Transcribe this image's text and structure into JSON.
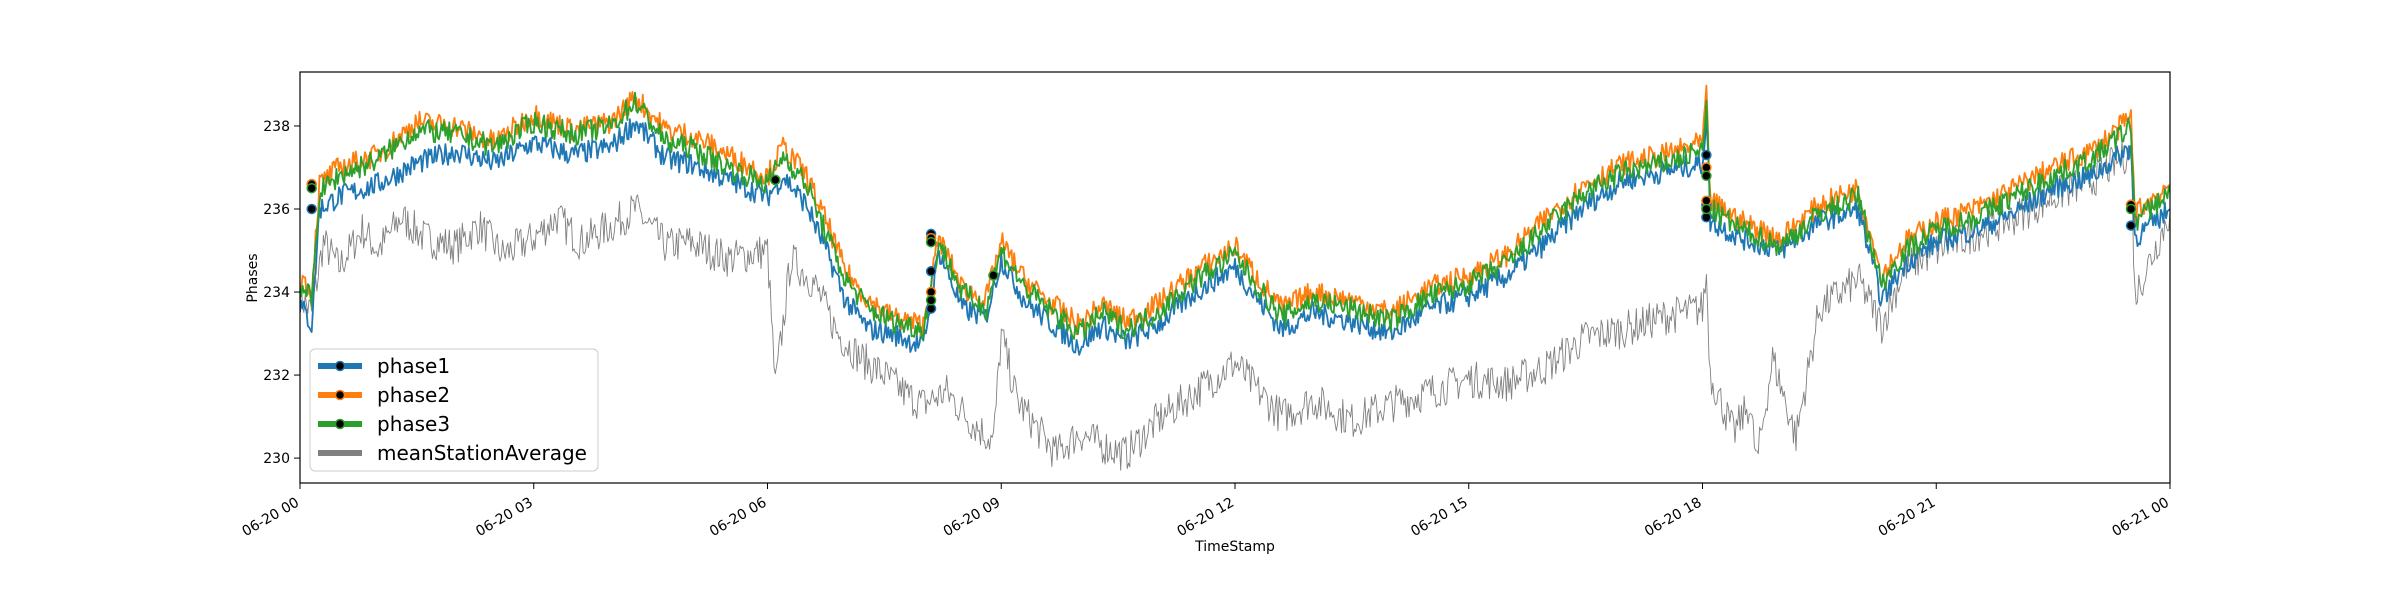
{
  "chart_data": {
    "type": "line",
    "title": "",
    "xlabel": "TimeStamp",
    "ylabel": "Phases",
    "x_ticks": [
      "06-20 00",
      "06-20 03",
      "06-20 06",
      "06-20 09",
      "06-20 12",
      "06-20 15",
      "06-20 18",
      "06-20 21",
      "06-21 00"
    ],
    "x_range_hours": [
      0,
      24
    ],
    "ylim": [
      229.4,
      239.3
    ],
    "y_ticks": [
      230,
      232,
      234,
      236,
      238
    ],
    "legend_position": "bottom-left",
    "grid": false,
    "series": [
      {
        "name": "phase1",
        "color": "#1f77b4",
        "marker_color": "#000000",
        "points": [
          [
            0,
            233.7
          ],
          [
            0.15,
            233.2
          ],
          [
            0.25,
            236.0
          ],
          [
            0.5,
            236.3
          ],
          [
            1,
            236.6
          ],
          [
            1.5,
            237.1
          ],
          [
            2,
            237.4
          ],
          [
            2.5,
            237.1
          ],
          [
            3,
            237.6
          ],
          [
            3.5,
            237.3
          ],
          [
            4,
            237.5
          ],
          [
            4.3,
            238.1
          ],
          [
            4.7,
            237.2
          ],
          [
            5,
            237.1
          ],
          [
            5.5,
            236.7
          ],
          [
            6,
            236.3
          ],
          [
            6.2,
            236.8
          ],
          [
            6.5,
            236.1
          ],
          [
            6.8,
            234.8
          ],
          [
            7,
            233.8
          ],
          [
            7.3,
            233.1
          ],
          [
            7.6,
            233.0
          ],
          [
            8,
            232.7
          ],
          [
            8.2,
            235.0
          ],
          [
            8.5,
            233.6
          ],
          [
            8.8,
            233.4
          ],
          [
            9,
            234.8
          ],
          [
            9.3,
            233.8
          ],
          [
            9.6,
            233.3
          ],
          [
            10,
            232.7
          ],
          [
            10.3,
            233.2
          ],
          [
            10.6,
            232.8
          ],
          [
            11,
            233.2
          ],
          [
            11.5,
            234.0
          ],
          [
            12,
            234.6
          ],
          [
            12.3,
            233.8
          ],
          [
            12.6,
            233.1
          ],
          [
            13,
            233.5
          ],
          [
            13.5,
            233.3
          ],
          [
            14,
            233.0
          ],
          [
            14.5,
            233.6
          ],
          [
            15,
            233.9
          ],
          [
            15.5,
            234.4
          ],
          [
            16,
            235.2
          ],
          [
            16.5,
            236.1
          ],
          [
            17,
            236.7
          ],
          [
            17.5,
            236.9
          ],
          [
            18,
            237.1
          ],
          [
            18.05,
            238.3
          ],
          [
            18.1,
            235.7
          ],
          [
            18.5,
            235.3
          ],
          [
            19,
            235.0
          ],
          [
            19.5,
            235.7
          ],
          [
            20,
            236.0
          ],
          [
            20.3,
            233.8
          ],
          [
            20.6,
            234.7
          ],
          [
            21,
            235.2
          ],
          [
            21.5,
            235.5
          ],
          [
            22,
            235.9
          ],
          [
            22.5,
            236.5
          ],
          [
            23,
            236.8
          ],
          [
            23.5,
            237.5
          ],
          [
            23.55,
            235.3
          ],
          [
            24,
            236.0
          ]
        ],
        "markers": [
          [
            0.15,
            236.0
          ],
          [
            0.15,
            236.6
          ],
          [
            6.1,
            236.7
          ],
          [
            8.1,
            234.5
          ],
          [
            8.1,
            233.6
          ],
          [
            8.1,
            235.4
          ],
          [
            8.9,
            234.4
          ],
          [
            18.05,
            236.1
          ],
          [
            18.05,
            235.8
          ],
          [
            18.05,
            237.3
          ],
          [
            23.5,
            235.6
          ],
          [
            23.5,
            236.1
          ]
        ]
      },
      {
        "name": "phase2",
        "color": "#ff7f0e",
        "marker_color": "#000000",
        "points": [
          [
            0,
            234.4
          ],
          [
            0.15,
            234.0
          ],
          [
            0.25,
            236.6
          ],
          [
            0.5,
            237.0
          ],
          [
            1,
            237.3
          ],
          [
            1.5,
            238.1
          ],
          [
            2,
            238.0
          ],
          [
            2.5,
            237.6
          ],
          [
            3,
            238.3
          ],
          [
            3.5,
            237.9
          ],
          [
            4,
            238.1
          ],
          [
            4.3,
            238.7
          ],
          [
            4.7,
            237.9
          ],
          [
            5,
            237.8
          ],
          [
            5.5,
            237.3
          ],
          [
            6,
            236.8
          ],
          [
            6.2,
            237.5
          ],
          [
            6.5,
            236.8
          ],
          [
            6.8,
            235.5
          ],
          [
            7,
            234.5
          ],
          [
            7.3,
            233.8
          ],
          [
            7.6,
            233.4
          ],
          [
            8,
            233.2
          ],
          [
            8.2,
            235.3
          ],
          [
            8.5,
            234.1
          ],
          [
            8.8,
            233.8
          ],
          [
            9,
            235.2
          ],
          [
            9.3,
            234.3
          ],
          [
            9.6,
            233.8
          ],
          [
            10,
            233.2
          ],
          [
            10.3,
            233.7
          ],
          [
            10.6,
            233.3
          ],
          [
            11,
            233.7
          ],
          [
            11.5,
            234.5
          ],
          [
            12,
            235.1
          ],
          [
            12.3,
            234.3
          ],
          [
            12.6,
            233.6
          ],
          [
            13,
            234.0
          ],
          [
            13.5,
            233.8
          ],
          [
            14,
            233.5
          ],
          [
            14.5,
            234.1
          ],
          [
            15,
            234.4
          ],
          [
            15.5,
            234.9
          ],
          [
            16,
            235.8
          ],
          [
            16.5,
            236.6
          ],
          [
            17,
            237.1
          ],
          [
            17.5,
            237.3
          ],
          [
            18,
            237.6
          ],
          [
            18.05,
            238.7
          ],
          [
            18.1,
            236.2
          ],
          [
            18.5,
            235.7
          ],
          [
            19,
            235.3
          ],
          [
            19.5,
            236.1
          ],
          [
            20,
            236.5
          ],
          [
            20.3,
            234.4
          ],
          [
            20.6,
            235.2
          ],
          [
            21,
            235.7
          ],
          [
            21.5,
            236.0
          ],
          [
            22,
            236.5
          ],
          [
            22.5,
            237.0
          ],
          [
            23,
            237.4
          ],
          [
            23.5,
            238.2
          ],
          [
            23.55,
            235.9
          ],
          [
            24,
            236.6
          ]
        ],
        "markers": [
          [
            0.15,
            236.6
          ],
          [
            6.1,
            236.7
          ],
          [
            8.1,
            235.3
          ],
          [
            8.1,
            234.0
          ],
          [
            8.9,
            234.4
          ],
          [
            18.05,
            237.0
          ],
          [
            18.05,
            236.2
          ],
          [
            23.5,
            236.1
          ]
        ]
      },
      {
        "name": "phase3",
        "color": "#2ca02c",
        "marker_color": "#000000",
        "points": [
          [
            0,
            234.2
          ],
          [
            0.15,
            233.8
          ],
          [
            0.25,
            236.4
          ],
          [
            0.5,
            236.8
          ],
          [
            1,
            237.2
          ],
          [
            1.5,
            237.9
          ],
          [
            2,
            237.8
          ],
          [
            2.5,
            237.5
          ],
          [
            3,
            238.1
          ],
          [
            3.5,
            237.8
          ],
          [
            4,
            238.0
          ],
          [
            4.3,
            238.6
          ],
          [
            4.7,
            237.6
          ],
          [
            5,
            237.5
          ],
          [
            5.5,
            237.0
          ],
          [
            6,
            236.6
          ],
          [
            6.2,
            237.3
          ],
          [
            6.5,
            236.6
          ],
          [
            6.8,
            235.2
          ],
          [
            7,
            234.3
          ],
          [
            7.3,
            233.6
          ],
          [
            7.6,
            233.3
          ],
          [
            8,
            233.1
          ],
          [
            8.2,
            235.2
          ],
          [
            8.5,
            234.0
          ],
          [
            8.8,
            233.6
          ],
          [
            9,
            235.0
          ],
          [
            9.3,
            234.1
          ],
          [
            9.6,
            233.6
          ],
          [
            10,
            233.0
          ],
          [
            10.3,
            233.5
          ],
          [
            10.6,
            233.1
          ],
          [
            11,
            233.5
          ],
          [
            11.5,
            234.3
          ],
          [
            12,
            234.9
          ],
          [
            12.3,
            234.1
          ],
          [
            12.6,
            233.4
          ],
          [
            13,
            233.8
          ],
          [
            13.5,
            233.6
          ],
          [
            14,
            233.3
          ],
          [
            14.5,
            233.9
          ],
          [
            15,
            234.2
          ],
          [
            15.5,
            234.7
          ],
          [
            16,
            235.6
          ],
          [
            16.5,
            236.4
          ],
          [
            17,
            236.9
          ],
          [
            17.5,
            237.1
          ],
          [
            18,
            237.4
          ],
          [
            18.05,
            238.5
          ],
          [
            18.1,
            236.0
          ],
          [
            18.5,
            235.5
          ],
          [
            19,
            235.1
          ],
          [
            19.5,
            235.9
          ],
          [
            20,
            236.3
          ],
          [
            20.3,
            234.2
          ],
          [
            20.6,
            235.0
          ],
          [
            21,
            235.5
          ],
          [
            21.5,
            235.8
          ],
          [
            22,
            236.3
          ],
          [
            22.5,
            236.8
          ],
          [
            23,
            237.2
          ],
          [
            23.5,
            238.0
          ],
          [
            23.55,
            235.7
          ],
          [
            24,
            236.4
          ]
        ],
        "markers": [
          [
            0.15,
            236.5
          ],
          [
            6.1,
            236.7
          ],
          [
            8.1,
            235.2
          ],
          [
            8.1,
            233.8
          ],
          [
            8.9,
            234.4
          ],
          [
            18.05,
            236.8
          ],
          [
            18.05,
            236.0
          ],
          [
            23.5,
            236.0
          ]
        ]
      },
      {
        "name": "meanStationAverage",
        "color": "#808080",
        "points": [
          [
            0,
            233.9
          ],
          [
            0.15,
            233.5
          ],
          [
            0.3,
            235.2
          ],
          [
            0.5,
            234.6
          ],
          [
            0.8,
            235.5
          ],
          [
            1,
            235.0
          ],
          [
            1.3,
            235.8
          ],
          [
            1.6,
            235.3
          ],
          [
            2,
            235.1
          ],
          [
            2.3,
            235.6
          ],
          [
            2.6,
            234.9
          ],
          [
            3,
            235.3
          ],
          [
            3.3,
            235.8
          ],
          [
            3.6,
            235.2
          ],
          [
            4,
            235.6
          ],
          [
            4.3,
            236.0
          ],
          [
            4.7,
            235.1
          ],
          [
            5,
            235.2
          ],
          [
            5.5,
            234.8
          ],
          [
            6,
            235.0
          ],
          [
            6.1,
            231.7
          ],
          [
            6.3,
            234.8
          ],
          [
            6.6,
            234.2
          ],
          [
            6.9,
            233.0
          ],
          [
            7.2,
            232.4
          ],
          [
            7.5,
            232.0
          ],
          [
            7.8,
            231.5
          ],
          [
            8,
            231.3
          ],
          [
            8.3,
            231.6
          ],
          [
            8.6,
            230.9
          ],
          [
            8.9,
            230.4
          ],
          [
            9,
            233.0
          ],
          [
            9.2,
            231.4
          ],
          [
            9.5,
            230.6
          ],
          [
            9.7,
            230.1
          ],
          [
            10,
            230.6
          ],
          [
            10.3,
            230.3
          ],
          [
            10.6,
            230.1
          ],
          [
            11,
            230.9
          ],
          [
            11.5,
            231.6
          ],
          [
            12,
            232.3
          ],
          [
            12.3,
            231.6
          ],
          [
            12.6,
            231.0
          ],
          [
            13,
            231.4
          ],
          [
            13.5,
            230.9
          ],
          [
            14,
            231.3
          ],
          [
            14.5,
            231.6
          ],
          [
            15,
            231.9
          ],
          [
            15.5,
            231.8
          ],
          [
            16,
            232.2
          ],
          [
            16.5,
            232.9
          ],
          [
            17,
            233.1
          ],
          [
            17.5,
            233.4
          ],
          [
            18,
            233.6
          ],
          [
            18.05,
            234.4
          ],
          [
            18.1,
            232.0
          ],
          [
            18.4,
            230.6
          ],
          [
            18.6,
            231.3
          ],
          [
            18.7,
            229.9
          ],
          [
            18.9,
            232.4
          ],
          [
            19.2,
            230.5
          ],
          [
            19.5,
            233.6
          ],
          [
            20,
            234.3
          ],
          [
            20.3,
            233.2
          ],
          [
            20.6,
            234.6
          ],
          [
            21,
            235.0
          ],
          [
            21.5,
            235.4
          ],
          [
            22,
            235.8
          ],
          [
            22.5,
            236.3
          ],
          [
            23,
            236.7
          ],
          [
            23.5,
            237.4
          ],
          [
            23.55,
            233.9
          ],
          [
            24,
            235.9
          ]
        ]
      }
    ]
  }
}
